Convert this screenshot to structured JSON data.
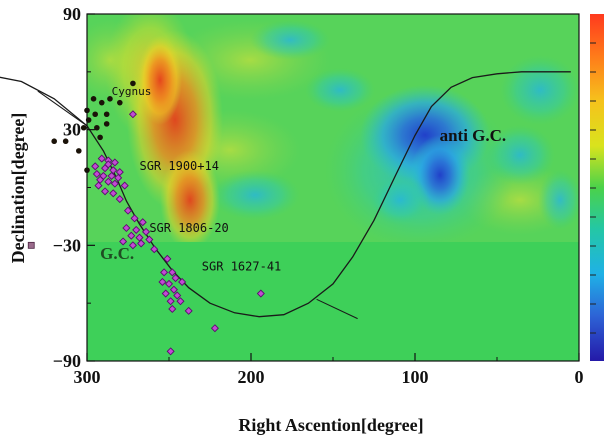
{
  "chart_data": {
    "type": "scatter",
    "subtype": "sky-map (equatorial coordinates) over a colored significance map",
    "xlabel": "Right Ascention[degree]",
    "ylabel": "Declination[degree]",
    "x_ticks": [
      "300",
      "200",
      "100",
      "0"
    ],
    "x_tick_values": [
      300,
      200,
      100,
      0
    ],
    "y_ticks": [
      "90",
      "30",
      "−30",
      "−90"
    ],
    "y_tick_values": [
      90,
      30,
      -30,
      -90
    ],
    "xlim": [
      360,
      0
    ],
    "ylim": [
      -90,
      90
    ],
    "x_reversed": true,
    "grid": false,
    "colorbar": {
      "placement": "right",
      "colormap": "jet",
      "ticks_shown": false
    },
    "annotations": [
      {
        "text": "Cygnus",
        "x": 285,
        "y": 48
      },
      {
        "text": "SGR 1900+14",
        "x": 268,
        "y": 9
      },
      {
        "text": "SGR 1806-20",
        "x": 262,
        "y": -23
      },
      {
        "text": "SGR 1627-41",
        "x": 230,
        "y": -43
      },
      {
        "text": "G.C.",
        "x": 292,
        "y": -37
      },
      {
        "text": "anti G.C.",
        "x": 85,
        "y": 24
      }
    ],
    "galactic_plane_curve": [
      [
        358,
        58
      ],
      [
        340,
        55
      ],
      [
        320,
        46
      ],
      [
        300,
        32
      ],
      [
        290,
        19
      ],
      [
        282,
        5
      ],
      [
        276,
        -7
      ],
      [
        268,
        -19
      ],
      [
        258,
        -32
      ],
      [
        248,
        -43
      ],
      [
        238,
        -52
      ],
      [
        225,
        -60
      ],
      [
        210,
        -65
      ],
      [
        195,
        -67
      ],
      [
        180,
        -66
      ],
      [
        165,
        -60
      ],
      [
        150,
        -50
      ],
      [
        138,
        -36
      ],
      [
        125,
        -17
      ],
      [
        112,
        6
      ],
      [
        100,
        27
      ],
      [
        90,
        42
      ],
      [
        78,
        52
      ],
      [
        65,
        57
      ],
      [
        50,
        59
      ],
      [
        35,
        60
      ],
      [
        20,
        60
      ],
      [
        5,
        60
      ]
    ],
    "series": [
      {
        "marker": "black-dot",
        "points": [
          [
            272,
            54
          ],
          [
            280,
            44
          ],
          [
            286,
            46
          ],
          [
            291,
            44
          ],
          [
            296,
            46
          ],
          [
            300,
            40
          ],
          [
            295,
            38
          ],
          [
            288,
            38
          ],
          [
            299,
            35
          ],
          [
            302,
            31
          ],
          [
            294,
            31
          ],
          [
            288,
            33
          ],
          [
            292,
            26
          ],
          [
            320,
            24
          ],
          [
            313,
            24
          ],
          [
            305,
            19
          ],
          [
            300,
            9
          ]
        ]
      },
      {
        "marker": "magenta-diamond",
        "points": [
          [
            272,
            38
          ],
          [
            291,
            15
          ],
          [
            287,
            14
          ],
          [
            283,
            13
          ],
          [
            295,
            11
          ],
          [
            289,
            10
          ],
          [
            284,
            9
          ],
          [
            280,
            8
          ],
          [
            294,
            7
          ],
          [
            290,
            6
          ],
          [
            285,
            6
          ],
          [
            281,
            5
          ],
          [
            287,
            3
          ],
          [
            283,
            2
          ],
          [
            293,
            1
          ],
          [
            289,
            -2
          ],
          [
            284,
            -3
          ],
          [
            280,
            -6
          ],
          [
            287,
            12
          ],
          [
            292,
            4
          ],
          [
            277,
            1
          ],
          [
            275,
            -12
          ],
          [
            271,
            -16
          ],
          [
            266,
            -18
          ],
          [
            276,
            -21
          ],
          [
            270,
            -22
          ],
          [
            264,
            -23
          ],
          [
            273,
            -25
          ],
          [
            268,
            -26
          ],
          [
            262,
            -27
          ],
          [
            278,
            -28
          ],
          [
            267,
            -29
          ],
          [
            272,
            -30
          ],
          [
            259,
            -32
          ],
          [
            251,
            -37
          ],
          [
            253,
            -44
          ],
          [
            248,
            -44
          ],
          [
            246,
            -47
          ],
          [
            254,
            -49
          ],
          [
            250,
            -50
          ],
          [
            242,
            -49
          ],
          [
            247,
            -53
          ],
          [
            252,
            -55
          ],
          [
            245,
            -56
          ],
          [
            249,
            -59
          ],
          [
            243,
            -59
          ],
          [
            248,
            -63
          ],
          [
            222,
            -73
          ],
          [
            249,
            -85
          ],
          [
            194,
            -55
          ],
          [
            238,
            -64
          ]
        ]
      },
      {
        "marker": "open-square",
        "points": [
          [
            334,
            -30
          ]
        ]
      }
    ]
  }
}
